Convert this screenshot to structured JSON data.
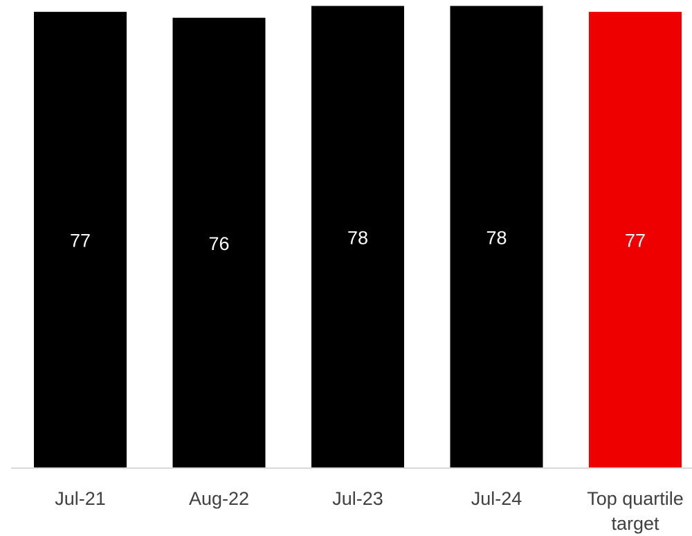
{
  "chart_data": {
    "type": "bar",
    "title": "",
    "xlabel": "",
    "ylabel": "",
    "categories": [
      "Jul-21",
      "Aug-22",
      "Jul-23",
      "Jul-24",
      "Top quartile target"
    ],
    "category_lines": [
      [
        "Jul-21"
      ],
      [
        "Aug-22"
      ],
      [
        "Jul-23"
      ],
      [
        "Jul-24"
      ],
      [
        "Top quartile",
        "target"
      ]
    ],
    "values": [
      77,
      76,
      78,
      78,
      77
    ],
    "value_labels": [
      "77",
      "76",
      "78",
      "78",
      "77"
    ],
    "bar_colors": [
      "#000000",
      "#000000",
      "#000000",
      "#000000",
      "#ee0000"
    ],
    "ylim": [
      0,
      79
    ],
    "grid": false,
    "legend": "none",
    "axis_color": "#d9d9d9"
  }
}
